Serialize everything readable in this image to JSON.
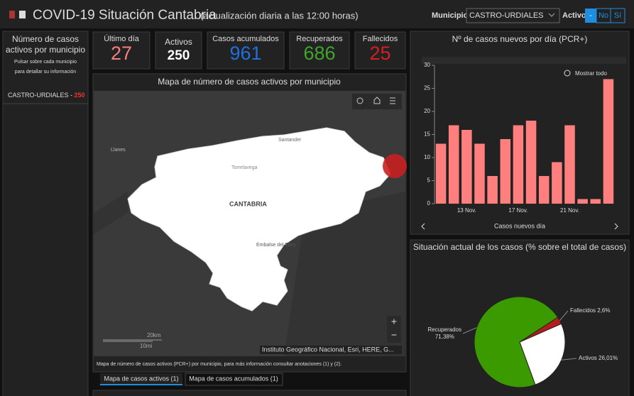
{
  "header": {
    "title": "COVID-19 Situación Cantabria",
    "subtitle": "(actualización diaria a las 12:00 horas)",
    "municipio_label": "Municipio",
    "municipio_value": "CASTRO-URDIALES",
    "activo_label": "Activo",
    "buttons": [
      "-",
      "No",
      "Sí"
    ]
  },
  "left_panel": {
    "title": "Número de casos activos por municipio",
    "hint": "Pulsar sobre cada municipio para detallar su información",
    "items": [
      {
        "name": "CASTRO-URDIALES - ",
        "value": "250"
      }
    ]
  },
  "kpis": [
    {
      "label": "Último día",
      "value": "27"
    },
    {
      "label": "Activos",
      "value": "250"
    },
    {
      "label": "Casos acumulados",
      "value": "961"
    },
    {
      "label": "Recuperados",
      "value": "686"
    },
    {
      "label": "Fallecidos",
      "value": "25"
    }
  ],
  "map": {
    "title": "Mapa de número de casos activos por municipio",
    "labels": [
      "Llanes",
      "Santander",
      "Torrelavega",
      "CANTABRIA",
      "Embalse del Ebro"
    ],
    "scale_km": "20km",
    "scale_mi": "10mi",
    "attribution": "Instituto Geográfico Nacional, Esri, HERE, G...",
    "caption": "Mapa de número de casos activos (PCR+) por municipio, para más información consultar anotaciones (1) y (2).",
    "tabs": [
      "Mapa de casos activos (1)",
      "Mapa de casos acumulados (1)"
    ]
  },
  "chart_data": [
    {
      "type": "bar",
      "title": "Nº de casos nuevos por día (PCR+)",
      "xlabel": "Casos nuevos día",
      "reset_label": "Mostrar todo",
      "color": "#ff7f7f",
      "categories": [
        null,
        null,
        "13 Nov.",
        null,
        null,
        null,
        "17 Nov.",
        null,
        null,
        null,
        "21 Nov.",
        null,
        null,
        null
      ],
      "values": [
        13,
        17,
        16,
        13,
        6,
        14,
        17,
        18,
        6,
        9,
        17,
        1,
        1,
        27
      ],
      "ylim": [
        0,
        30
      ],
      "yticks": [
        0,
        5,
        10,
        15,
        20,
        25,
        30
      ]
    },
    {
      "type": "pie",
      "title": "Situación actual de los casos (% sobre el total de casos)",
      "categories": [
        "Fallecidos",
        "Activos",
        "Recuperados"
      ],
      "values": [
        2.6,
        26.01,
        71.38
      ],
      "value_labels": [
        "2,6%",
        "26,01%",
        "71,38%"
      ],
      "colors": [
        "#b51c1c",
        "#ffffff",
        "#3a9a00"
      ]
    }
  ]
}
